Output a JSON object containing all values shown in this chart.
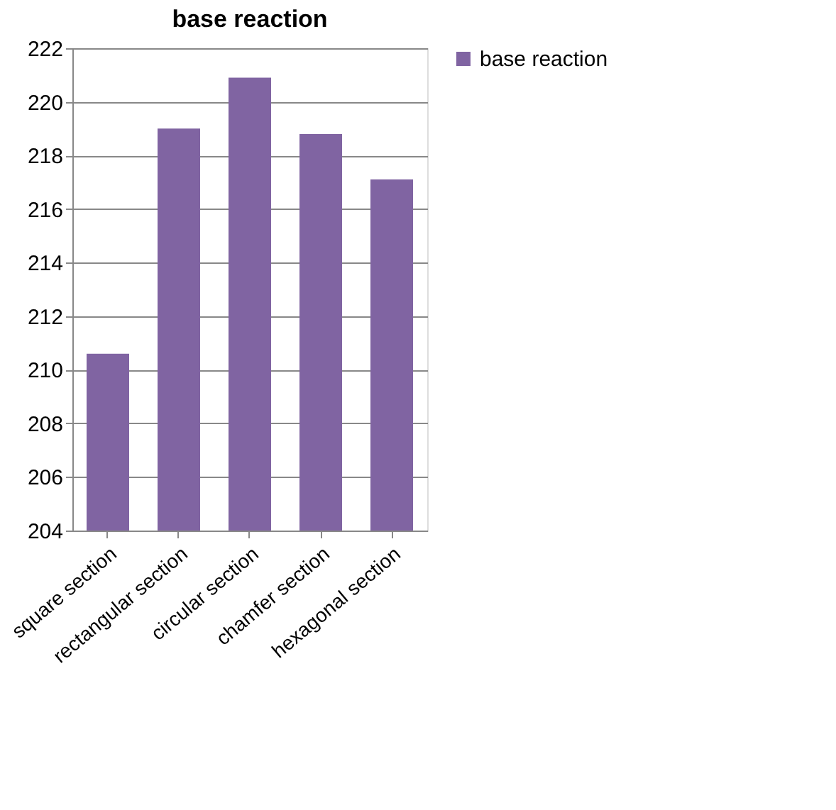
{
  "chart_data": {
    "type": "bar",
    "title": "base reaction",
    "categories": [
      "square section",
      "rectangular section",
      "circular section",
      "chamfer section",
      "hexagonal section"
    ],
    "series": [
      {
        "name": "base reaction",
        "color": "#8064a2",
        "values": [
          210.6,
          219.0,
          220.9,
          218.8,
          217.1
        ]
      }
    ],
    "ylim": [
      204,
      222
    ],
    "yticks": [
      204,
      206,
      208,
      210,
      212,
      214,
      216,
      218,
      220,
      222
    ],
    "grid": "y",
    "legend": "right"
  }
}
